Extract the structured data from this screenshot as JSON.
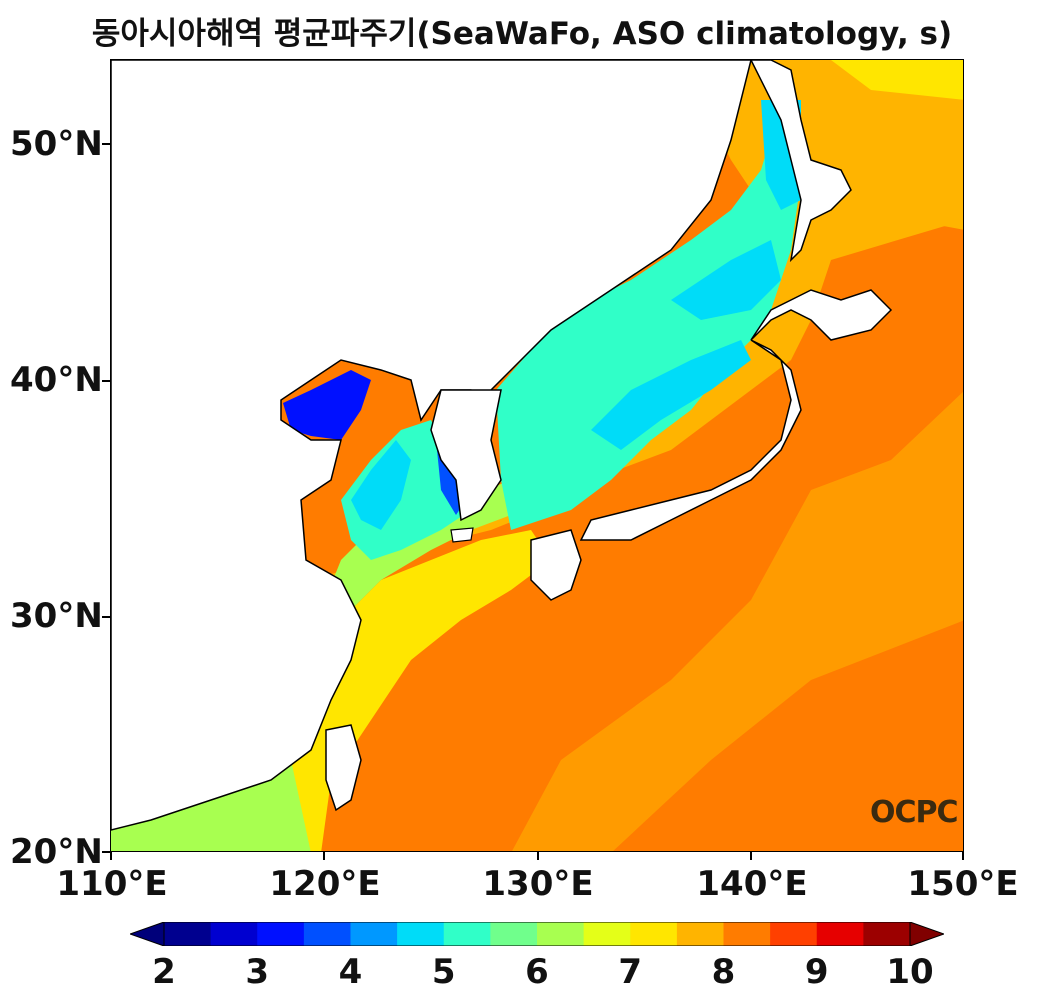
{
  "title": "동아시아해역 평균파주기(SeaWaFo, ASO climatology, s)",
  "axes": {
    "y_ticks": [
      "50°N",
      "40°N",
      "30°N",
      "20°N"
    ],
    "x_ticks": [
      "110°E",
      "120°E",
      "130°E",
      "140°E",
      "150°E"
    ]
  },
  "watermark": "OCPC",
  "colorbar": {
    "labels": [
      "2",
      "3",
      "4",
      "5",
      "6",
      "7",
      "8",
      "9",
      "10"
    ],
    "colors": [
      "#00008f",
      "#0000d0",
      "#0010ff",
      "#0050ff",
      "#0098ff",
      "#00dcf8",
      "#30ffc8",
      "#70ff8c",
      "#a8ff50",
      "#e4ff18",
      "#ffe600",
      "#ffb400",
      "#ff7c00",
      "#ff4000",
      "#e60000",
      "#9c0000"
    ],
    "under_color": "#00007a",
    "over_color": "#800000"
  },
  "map": {
    "region": "East Asian Seas",
    "lon_range": [
      110,
      150
    ],
    "lat_range": [
      20,
      53.5
    ],
    "land_color": "#ffffff",
    "coast_color": "#000000"
  }
}
